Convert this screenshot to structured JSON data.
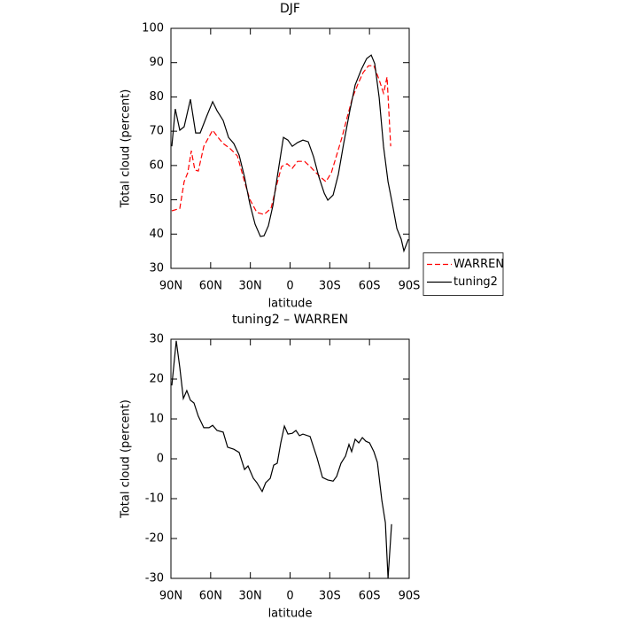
{
  "chart_data": [
    {
      "type": "line",
      "title": "DJF",
      "xlabel": "latitude",
      "ylabel": "Total cloud (percent)",
      "xlim": [
        90,
        -90
      ],
      "xticks": [
        {
          "value": 90,
          "label": "90N"
        },
        {
          "value": 60,
          "label": "60N"
        },
        {
          "value": 30,
          "label": "30N"
        },
        0,
        {
          "value": -30,
          "label": "30S"
        },
        {
          "value": -60,
          "label": "60S"
        },
        {
          "value": -90,
          "label": "90S"
        }
      ],
      "ylim": [
        30,
        100
      ],
      "yticks": [
        30,
        40,
        50,
        60,
        70,
        80,
        90,
        100
      ],
      "legend": "right",
      "series": [
        {
          "name": "WARREN",
          "color": "#ff0000",
          "dash": "dashed",
          "x": [
            89.3,
            83.3,
            80.0,
            77.3,
            74.6,
            71.9,
            69.3,
            65.2,
            58.5,
            54.5,
            50.5,
            45.2,
            39.8,
            34.4,
            30.4,
            25.1,
            19.7,
            14.4,
            10.4,
            6.4,
            2.3,
            -1.7,
            -5.7,
            -11.0,
            -15.1,
            -19.1,
            -23.1,
            -27.1,
            -31.2,
            -35.2,
            -39.2,
            -43.2,
            -47.2,
            -51.2,
            -55.2,
            -59.3,
            -63.3,
            -67.3,
            -70.6,
            -73.3,
            -76.0
          ],
          "values": [
            46.8,
            47.5,
            55.3,
            57.9,
            64.3,
            58.7,
            58.4,
            65.6,
            70.3,
            68.2,
            66.4,
            64.9,
            62.8,
            55.3,
            50.1,
            46.3,
            45.7,
            47.5,
            54.0,
            59.7,
            60.5,
            59.2,
            61.2,
            61.2,
            59.7,
            58.1,
            56.6,
            55.3,
            57.9,
            63.0,
            68.2,
            74.2,
            79.8,
            83.7,
            87.1,
            89.1,
            89.1,
            85.0,
            81.1,
            85.8,
            65.6
          ]
        },
        {
          "name": "tuning2",
          "color": "#000000",
          "dash": "solid",
          "x": [
            89.3,
            86.7,
            83.3,
            80.0,
            75.3,
            71.3,
            67.9,
            62.6,
            58.5,
            55.2,
            50.5,
            46.5,
            42.5,
            38.5,
            34.4,
            30.4,
            26.4,
            22.4,
            19.7,
            16.4,
            13.0,
            9.7,
            5.0,
            1.6,
            -1.7,
            -5.7,
            -9.7,
            -13.7,
            -17.8,
            -21.8,
            -25.8,
            -28.5,
            -32.5,
            -36.5,
            -40.5,
            -45.2,
            -49.2,
            -53.9,
            -57.9,
            -61.3,
            -64.0,
            -67.3,
            -70.6,
            -74.0,
            -77.3,
            -80.7,
            -84.0,
            -86.0,
            -89.4
          ],
          "values": [
            65.6,
            76.5,
            70.3,
            71.3,
            79.3,
            69.5,
            69.5,
            74.7,
            78.6,
            76.0,
            73.1,
            68.2,
            66.4,
            63.0,
            56.6,
            48.8,
            42.9,
            39.3,
            39.5,
            42.4,
            48.3,
            56.6,
            68.2,
            67.4,
            65.6,
            66.7,
            67.4,
            66.9,
            62.5,
            56.6,
            51.9,
            49.9,
            51.4,
            57.4,
            66.4,
            76.0,
            83.5,
            88.1,
            91.2,
            92.2,
            89.7,
            79.8,
            65.6,
            55.3,
            48.8,
            41.6,
            38.5,
            35.1,
            38.5
          ]
        }
      ]
    },
    {
      "type": "line",
      "title": "tuning2 – WARREN",
      "xlabel": "latitude",
      "ylabel": "Total cloud (percent)",
      "xlim": [
        90,
        -90
      ],
      "xticks": [
        {
          "value": 90,
          "label": "90N"
        },
        {
          "value": 60,
          "label": "60N"
        },
        {
          "value": 30,
          "label": "30N"
        },
        0,
        {
          "value": -30,
          "label": "30S"
        },
        {
          "value": -60,
          "label": "60S"
        },
        {
          "value": -90,
          "label": "90S"
        }
      ],
      "ylim": [
        -30,
        30
      ],
      "yticks": [
        -30,
        -20,
        -10,
        0,
        10,
        20,
        30
      ],
      "color": "#000000",
      "x": [
        89.3,
        86.0,
        83.3,
        80.6,
        78.0,
        75.3,
        72.6,
        69.3,
        65.2,
        61.2,
        58.5,
        55.2,
        50.5,
        47.2,
        42.5,
        38.5,
        34.4,
        31.8,
        27.8,
        25.1,
        21.1,
        18.4,
        15.0,
        12.4,
        9.7,
        7.0,
        4.3,
        1.6,
        -1.7,
        -4.4,
        -7.1,
        -9.7,
        -15.1,
        -20.4,
        -24.5,
        -28.5,
        -32.5,
        -35.2,
        -38.5,
        -41.9,
        -44.5,
        -46.5,
        -49.2,
        -51.9,
        -54.6,
        -57.3,
        -60.0,
        -63.3,
        -66.0,
        -69.3,
        -72.0,
        -74.0,
        -76.7
      ],
      "values": [
        18.4,
        29.6,
        22.9,
        15.1,
        17.1,
        14.7,
        14.0,
        10.7,
        7.8,
        7.8,
        8.4,
        7.1,
        6.7,
        2.9,
        2.4,
        1.6,
        -2.7,
        -1.8,
        -4.9,
        -6.0,
        -8.2,
        -6.0,
        -4.9,
        -1.6,
        -1.1,
        4.0,
        8.2,
        6.2,
        6.4,
        7.1,
        5.8,
        6.2,
        5.6,
        0.2,
        -4.7,
        -5.3,
        -5.6,
        -4.4,
        -1.1,
        0.7,
        3.6,
        1.8,
        4.9,
        4.0,
        5.3,
        4.4,
        4.0,
        1.8,
        -0.9,
        -10.4,
        -16.0,
        -30.0,
        -16.4
      ]
    }
  ]
}
